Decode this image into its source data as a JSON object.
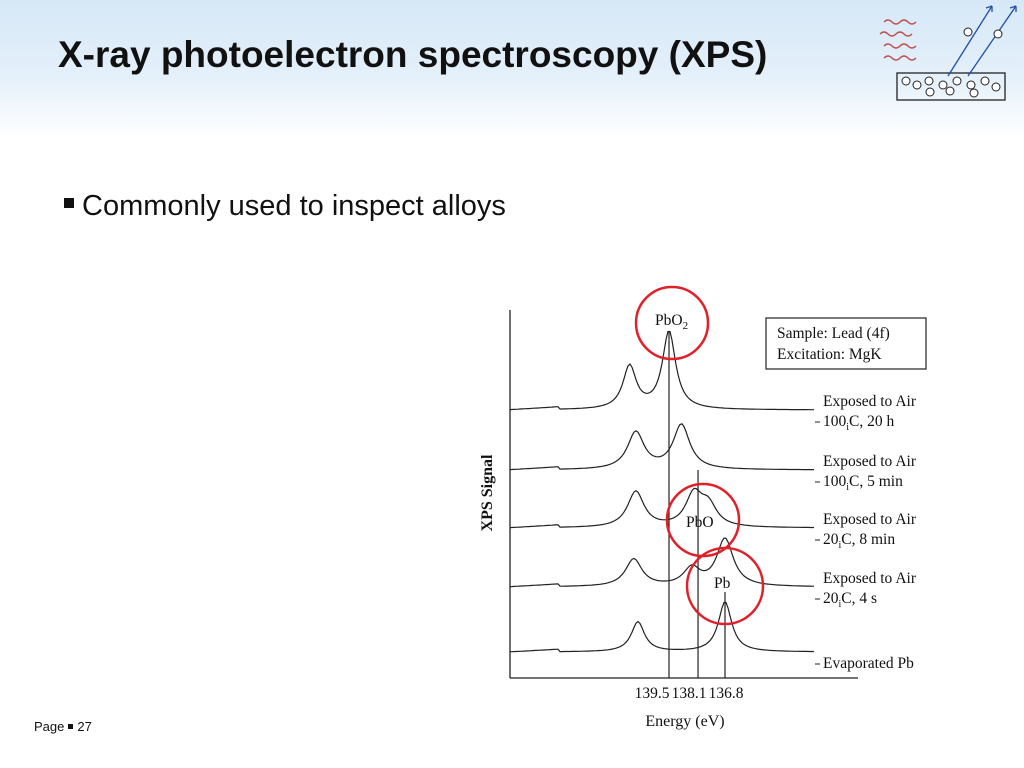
{
  "slide": {
    "title": "X-ray photoelectron spectroscopy (XPS)",
    "bullets": [
      "Commonly used to inspect alloys"
    ],
    "footer_label": "Page",
    "page_number": "27",
    "decor_icon": "xps-schematic-icon",
    "colors": {
      "title": "#111111",
      "header_band": "#d6e8f7",
      "highlight_circle": "#e0202a",
      "arrow": "#1f4fa8"
    }
  },
  "chart_data": {
    "type": "line",
    "xlabel": "Energy (eV)",
    "ylabel": "XPS Signal",
    "x_reversed": true,
    "x_ticks": [
      "139.5",
      "138.1",
      "136.8"
    ],
    "legend_box": [
      "Sample: Lead (4f)",
      "Excitation: MgK"
    ],
    "series": [
      {
        "name": "Exposed to Air 100°C, 20 h",
        "label_lines": [
          "Exposed to Air",
          "100",
          "C, 20 h"
        ],
        "peaks": [
          {
            "x": 141.4,
            "h": 0.55
          },
          {
            "x": 139.5,
            "h": 1.0
          }
        ]
      },
      {
        "name": "Exposed to Air 100°C, 5 min",
        "label_lines": [
          "Exposed to Air",
          "100",
          "C, 5 min"
        ],
        "peaks": [
          {
            "x": 141.1,
            "h": 0.6
          },
          {
            "x": 138.9,
            "h": 0.72
          }
        ]
      },
      {
        "name": "Exposed to Air 20°C, 8 min",
        "label_lines": [
          "Exposed to Air",
          "20",
          "C, 8 min"
        ],
        "peaks": [
          {
            "x": 141.1,
            "h": 0.62
          },
          {
            "x": 138.3,
            "h": 0.55
          },
          {
            "x": 137.6,
            "h": 0.35
          }
        ]
      },
      {
        "name": "Exposed to Air 20°C, 4 s",
        "label_lines": [
          "Exposed to Air",
          "20",
          "C, 4 s"
        ],
        "peaks": [
          {
            "x": 141.2,
            "h": 0.55
          },
          {
            "x": 138.4,
            "h": 0.35
          },
          {
            "x": 136.8,
            "h": 0.95
          }
        ]
      },
      {
        "name": "Evaporated Pb",
        "label_lines": [
          "Evaporated Pb"
        ],
        "peaks": [
          {
            "x": 141.0,
            "h": 0.6
          },
          {
            "x": 136.8,
            "h": 1.0
          }
        ]
      }
    ],
    "reference_lines": [
      {
        "x": 139.5,
        "label": "PbO",
        "sub": "2"
      },
      {
        "x": 138.1,
        "label": "PbO"
      },
      {
        "x": 136.8,
        "label": "Pb"
      }
    ],
    "degree_glyph": "i"
  }
}
